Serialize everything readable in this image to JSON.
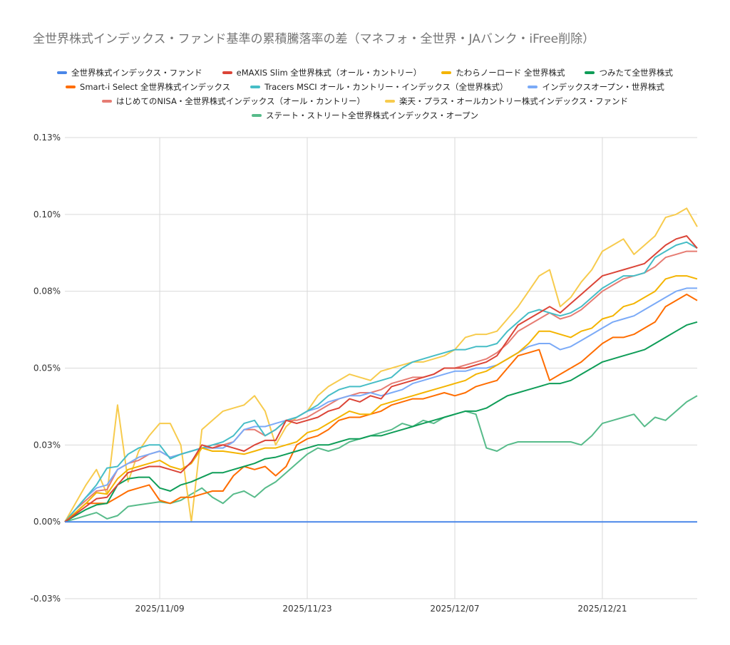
{
  "chart_data": {
    "type": "line",
    "title": "全世界株式インデックス・ファンド基準の累積騰落率の差（マネフォ・全世界・JAバンク・iFree削除）",
    "xlabel": "",
    "ylabel": "",
    "ylim": [
      -0.025,
      0.125
    ],
    "y_ticks": [
      -0.025,
      0.0,
      0.025,
      0.05,
      0.075,
      0.1,
      0.125
    ],
    "y_tick_labels": [
      "-0.03%",
      "0.00%",
      "0.03%",
      "0.05%",
      "0.08%",
      "0.10%",
      "0.13%"
    ],
    "x_tick_labels": [
      "2025/11/09",
      "2025/11/23",
      "2025/12/07",
      "2025/12/21"
    ],
    "x_tick_index": [
      9,
      23,
      37,
      51
    ],
    "x_count": 61,
    "grid": true,
    "legend_position": "top",
    "series": [
      {
        "name": "全世界株式インデックス・ファンド",
        "color": "#4a86e8",
        "values": [
          0,
          0,
          0,
          0,
          0,
          0,
          0,
          0,
          0,
          0,
          0,
          0,
          0,
          0,
          0,
          0,
          0,
          0,
          0,
          0,
          0,
          0,
          0,
          0,
          0,
          0,
          0,
          0,
          0,
          0,
          0,
          0,
          0,
          0,
          0,
          0,
          0,
          0,
          0,
          0,
          0,
          0,
          0,
          0,
          0,
          0,
          0,
          0,
          0,
          0,
          0,
          0,
          0,
          0,
          0,
          0,
          0,
          0,
          0,
          0,
          0
        ]
      },
      {
        "name": "eMAXIS Slim 全世界株式（オール・カントリー）",
        "color": "#db4437",
        "values": [
          0,
          0.0025,
          0.005,
          0.0075,
          0.008,
          0.012,
          0.016,
          0.017,
          0.018,
          0.018,
          0.017,
          0.016,
          0.0195,
          0.025,
          0.024,
          0.025,
          0.024,
          0.023,
          0.025,
          0.0265,
          0.0265,
          0.033,
          0.032,
          0.033,
          0.034,
          0.036,
          0.037,
          0.04,
          0.039,
          0.041,
          0.04,
          0.044,
          0.045,
          0.046,
          0.047,
          0.048,
          0.05,
          0.05,
          0.05,
          0.051,
          0.052,
          0.054,
          0.059,
          0.064,
          0.066,
          0.068,
          0.07,
          0.068,
          0.071,
          0.074,
          0.077,
          0.08,
          0.081,
          0.082,
          0.083,
          0.084,
          0.087,
          0.09,
          0.092,
          0.093,
          0.089
        ]
      },
      {
        "name": "たわらノーロード 全世界株式",
        "color": "#f4b400",
        "values": [
          0,
          0.003,
          0.006,
          0.0095,
          0.009,
          0.014,
          0.017,
          0.018,
          0.019,
          0.02,
          0.018,
          0.017,
          0.019,
          0.024,
          0.023,
          0.023,
          0.0225,
          0.022,
          0.023,
          0.024,
          0.024,
          0.025,
          0.026,
          0.029,
          0.03,
          0.032,
          0.034,
          0.036,
          0.035,
          0.035,
          0.038,
          0.039,
          0.04,
          0.041,
          0.042,
          0.043,
          0.044,
          0.045,
          0.046,
          0.048,
          0.049,
          0.051,
          0.053,
          0.055,
          0.058,
          0.062,
          0.062,
          0.061,
          0.06,
          0.062,
          0.063,
          0.066,
          0.067,
          0.07,
          0.071,
          0.073,
          0.075,
          0.079,
          0.08,
          0.08,
          0.079
        ]
      },
      {
        "name": "つみたて全世界株式",
        "color": "#0f9d58",
        "values": [
          0,
          0.002,
          0.004,
          0.0055,
          0.006,
          0.012,
          0.014,
          0.0145,
          0.0145,
          0.011,
          0.01,
          0.012,
          0.013,
          0.0145,
          0.016,
          0.016,
          0.017,
          0.018,
          0.019,
          0.0205,
          0.021,
          0.022,
          0.023,
          0.024,
          0.025,
          0.025,
          0.026,
          0.027,
          0.027,
          0.028,
          0.028,
          0.029,
          0.03,
          0.031,
          0.032,
          0.033,
          0.034,
          0.035,
          0.036,
          0.036,
          0.037,
          0.039,
          0.041,
          0.042,
          0.043,
          0.044,
          0.045,
          0.045,
          0.046,
          0.048,
          0.05,
          0.052,
          0.053,
          0.054,
          0.055,
          0.056,
          0.058,
          0.06,
          0.062,
          0.064,
          0.065
        ]
      },
      {
        "name": "Smart-i Select 全世界株式インデックス",
        "color": "#ff6d00",
        "values": [
          0,
          0.003,
          0.006,
          0.006,
          0.006,
          0.008,
          0.01,
          0.011,
          0.012,
          0.007,
          0.006,
          0.008,
          0.008,
          0.009,
          0.01,
          0.01,
          0.015,
          0.018,
          0.017,
          0.018,
          0.015,
          0.018,
          0.025,
          0.027,
          0.028,
          0.03,
          0.033,
          0.034,
          0.034,
          0.035,
          0.036,
          0.038,
          0.039,
          0.04,
          0.04,
          0.041,
          0.042,
          0.041,
          0.042,
          0.044,
          0.045,
          0.046,
          0.05,
          0.054,
          0.055,
          0.056,
          0.046,
          0.048,
          0.05,
          0.052,
          0.055,
          0.058,
          0.06,
          0.06,
          0.061,
          0.063,
          0.065,
          0.07,
          0.072,
          0.074,
          0.072
        ]
      },
      {
        "name": "Tracers MSCI オール・カントリー・インデックス（全世界株式）",
        "color": "#46bdc6",
        "values": [
          0,
          0.004,
          0.008,
          0.012,
          0.0175,
          0.018,
          0.022,
          0.024,
          0.025,
          0.025,
          0.0205,
          0.022,
          0.023,
          0.024,
          0.025,
          0.026,
          0.028,
          0.032,
          0.033,
          0.028,
          0.03,
          0.033,
          0.034,
          0.036,
          0.038,
          0.041,
          0.043,
          0.044,
          0.044,
          0.045,
          0.046,
          0.047,
          0.05,
          0.052,
          0.053,
          0.054,
          0.055,
          0.056,
          0.056,
          0.057,
          0.057,
          0.058,
          0.062,
          0.065,
          0.068,
          0.069,
          0.068,
          0.067,
          0.068,
          0.07,
          0.073,
          0.076,
          0.078,
          0.08,
          0.08,
          0.081,
          0.086,
          0.088,
          0.09,
          0.091,
          0.089
        ]
      },
      {
        "name": "インデックスオープン・世界株式",
        "color": "#7baaf7",
        "values": [
          0,
          0.004,
          0.008,
          0.011,
          0.012,
          0.017,
          0.019,
          0.021,
          0.022,
          0.023,
          0.021,
          0.022,
          0.023,
          0.024,
          0.024,
          0.024,
          0.026,
          0.03,
          0.031,
          0.031,
          0.032,
          0.033,
          0.034,
          0.036,
          0.037,
          0.039,
          0.04,
          0.041,
          0.041,
          0.042,
          0.041,
          0.042,
          0.043,
          0.045,
          0.046,
          0.047,
          0.048,
          0.049,
          0.049,
          0.05,
          0.05,
          0.051,
          0.053,
          0.055,
          0.057,
          0.058,
          0.058,
          0.056,
          0.057,
          0.059,
          0.061,
          0.063,
          0.065,
          0.066,
          0.067,
          0.069,
          0.071,
          0.073,
          0.075,
          0.076,
          0.076
        ]
      },
      {
        "name": "はじめてのNISA・全世界株式インデックス（オール・カントリー）",
        "color": "#e67c73",
        "values": [
          0,
          0.004,
          0.007,
          0.01,
          0.0105,
          0.017,
          0.019,
          0.02,
          0.022,
          0.023,
          0.021,
          0.022,
          0.023,
          0.024,
          0.025,
          0.025,
          0.026,
          0.03,
          0.03,
          0.028,
          0.03,
          0.033,
          0.033,
          0.034,
          0.036,
          0.038,
          0.04,
          0.041,
          0.042,
          0.042,
          0.043,
          0.045,
          0.046,
          0.047,
          0.047,
          0.048,
          0.05,
          0.05,
          0.051,
          0.052,
          0.053,
          0.055,
          0.058,
          0.062,
          0.064,
          0.066,
          0.068,
          0.066,
          0.067,
          0.069,
          0.072,
          0.075,
          0.077,
          0.079,
          0.08,
          0.081,
          0.083,
          0.086,
          0.087,
          0.088,
          0.088
        ]
      },
      {
        "name": "楽天・プラス・オールカントリー株式インデックス・ファンド",
        "color": "#f7cb4d",
        "values": [
          0,
          0.006,
          0.012,
          0.017,
          0.009,
          0.038,
          0.013,
          0.023,
          0.028,
          0.032,
          0.032,
          0.025,
          0.0,
          0.03,
          0.033,
          0.036,
          0.037,
          0.038,
          0.041,
          0.036,
          0.025,
          0.031,
          0.034,
          0.036,
          0.041,
          0.044,
          0.046,
          0.048,
          0.047,
          0.046,
          0.049,
          0.05,
          0.051,
          0.052,
          0.052,
          0.053,
          0.054,
          0.056,
          0.06,
          0.061,
          0.061,
          0.062,
          0.066,
          0.07,
          0.075,
          0.08,
          0.082,
          0.07,
          0.073,
          0.078,
          0.082,
          0.088,
          0.09,
          0.092,
          0.087,
          0.09,
          0.093,
          0.099,
          0.1,
          0.102,
          0.096
        ]
      },
      {
        "name": "ステート・ストリート全世界株式インデックス・オープン",
        "color": "#57bb8a",
        "values": [
          0,
          0.001,
          0.002,
          0.003,
          0.001,
          0.002,
          0.005,
          0.0055,
          0.006,
          0.0065,
          0.006,
          0.007,
          0.009,
          0.011,
          0.008,
          0.006,
          0.009,
          0.01,
          0.008,
          0.011,
          0.013,
          0.016,
          0.019,
          0.022,
          0.024,
          0.023,
          0.024,
          0.026,
          0.027,
          0.028,
          0.029,
          0.03,
          0.032,
          0.031,
          0.033,
          0.032,
          0.034,
          0.035,
          0.036,
          0.035,
          0.024,
          0.023,
          0.025,
          0.026,
          0.026,
          0.026,
          0.026,
          0.026,
          0.026,
          0.025,
          0.028,
          0.032,
          0.033,
          0.034,
          0.035,
          0.031,
          0.034,
          0.033,
          0.036,
          0.039,
          0.041
        ]
      }
    ]
  }
}
